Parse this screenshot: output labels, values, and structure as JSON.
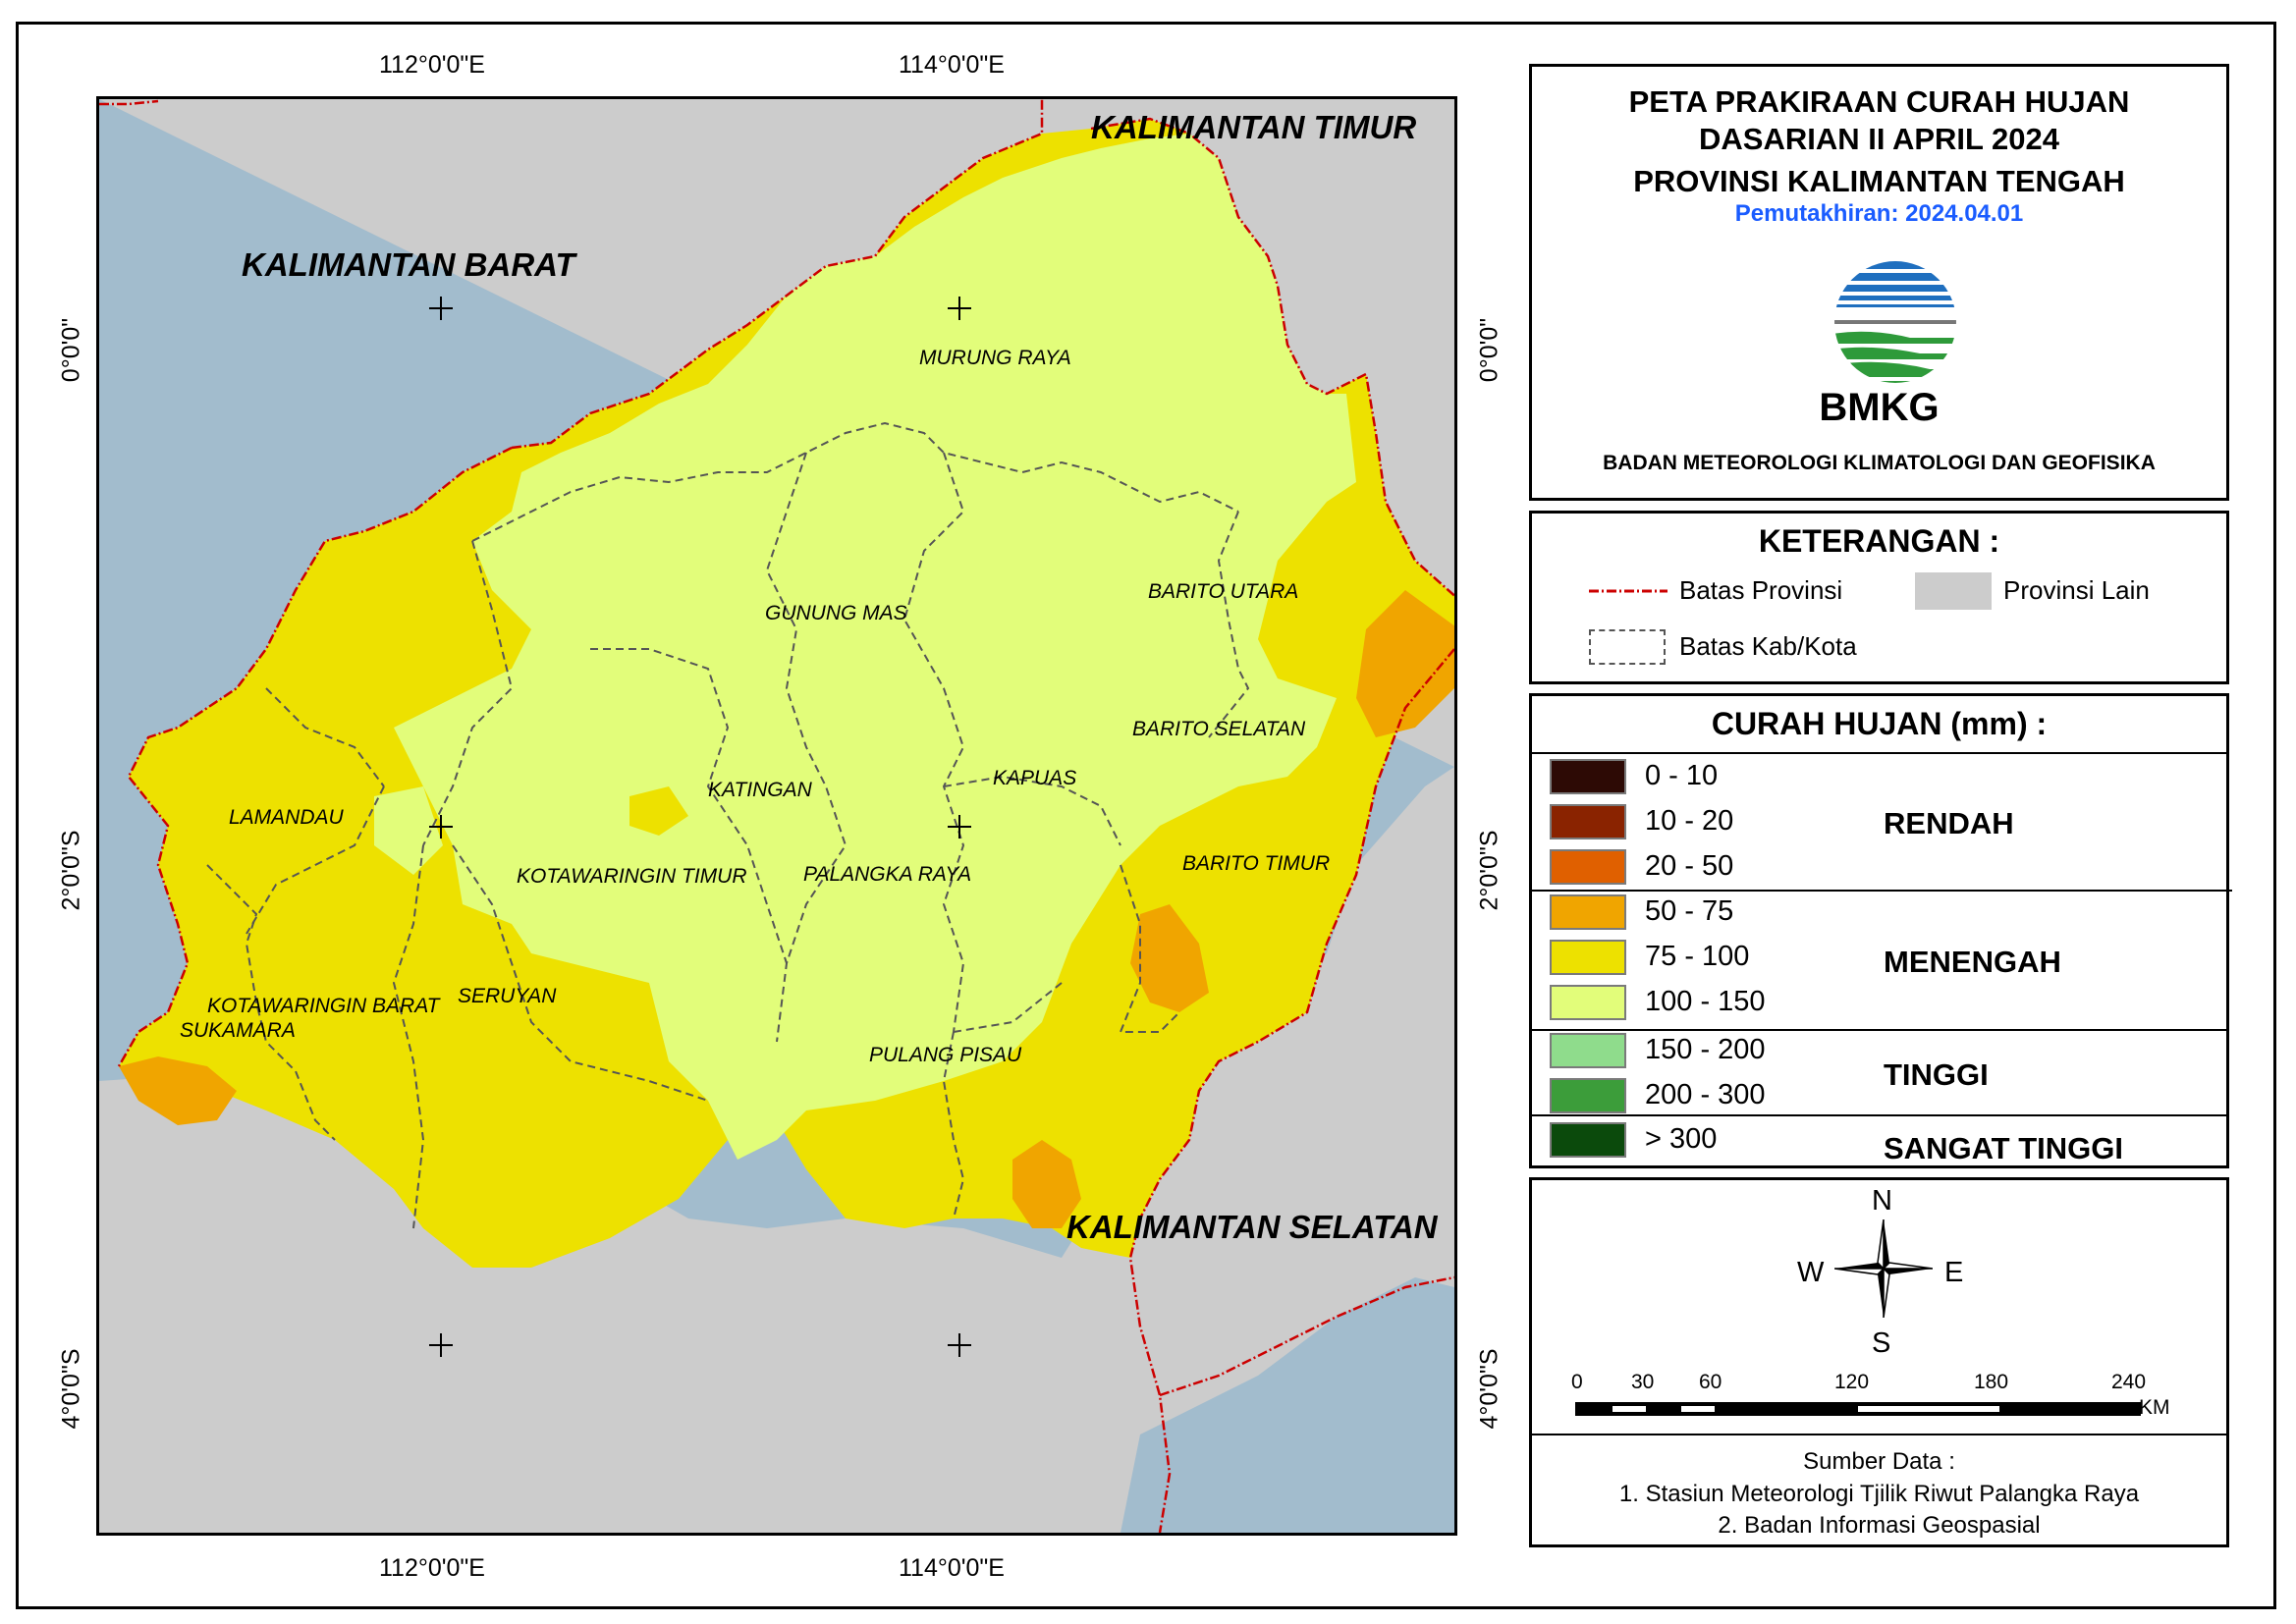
{
  "title": {
    "line1": "PETA PRAKIRAAN CURAH HUJAN",
    "line2": "DASARIAN II APRIL 2024",
    "line3": "PROVINSI KALIMANTAN TENGAH",
    "updated": "Pemutakhiran: 2024.04.01",
    "logo_text": "BMKG",
    "agency": "BADAN METEOROLOGI KLIMATOLOGI DAN GEOFISIKA"
  },
  "neighbors": [
    "KALIMANTAN TIMUR",
    "KALIMANTAN BARAT",
    "KALIMANTAN SELATAN"
  ],
  "regencies": [
    "MURUNG RAYA",
    "GUNUNG MAS",
    "BARITO UTARA",
    "BARITO SELATAN",
    "KATINGAN",
    "KAPUAS",
    "LAMANDAU",
    "KOTAWARINGIN TIMUR",
    "PALANGKA RAYA",
    "BARITO TIMUR",
    "KOTAWARINGIN BARAT",
    "SERUYAN",
    "SUKAMARA",
    "PULANG PISAU"
  ],
  "coords": {
    "lon1": "112°0'0\"E",
    "lon2": "114°0'0\"E",
    "lat1": "0°0'0\"",
    "lat2": "2°0'0\"S",
    "lat3": "4°0'0\"S"
  },
  "legend": {
    "title": "KETERANGAN :",
    "province_line": "Batas Provinsi",
    "other_province": "Provinsi Lain",
    "district_line": "Batas Kab/Kota"
  },
  "rainfall": {
    "title": "CURAH HUJAN (mm) :",
    "classes": [
      {
        "label": "0 - 10",
        "color": "#2d0a05"
      },
      {
        "label": "10 - 20",
        "color": "#8a2300"
      },
      {
        "label": "20 - 50",
        "color": "#e06000"
      },
      {
        "label": "50 - 75",
        "color": "#f0a500"
      },
      {
        "label": "75 - 100",
        "color": "#ede100"
      },
      {
        "label": "100 - 150",
        "color": "#e2fd7a"
      },
      {
        "label": "150 - 200",
        "color": "#8fdc8c"
      },
      {
        "label": "200 - 300",
        "color": "#3c9d3a"
      },
      {
        "label": "> 300",
        "color": "#0b4a0c"
      }
    ],
    "categories": [
      "RENDAH",
      "MENENGAH",
      "TINGGI",
      "SANGAT TINGGI"
    ]
  },
  "compass": {
    "n": "N",
    "s": "S",
    "e": "E",
    "w": "W"
  },
  "scale": {
    "ticks": [
      "0",
      "30",
      "60",
      "120",
      "180",
      "240"
    ],
    "unit": "KM"
  },
  "sources": {
    "title": "Sumber Data :",
    "items": [
      "1. Stasiun Meteorologi Tjilik Riwut Palangka Raya",
      "2. Badan Informasi Geospasial"
    ]
  }
}
